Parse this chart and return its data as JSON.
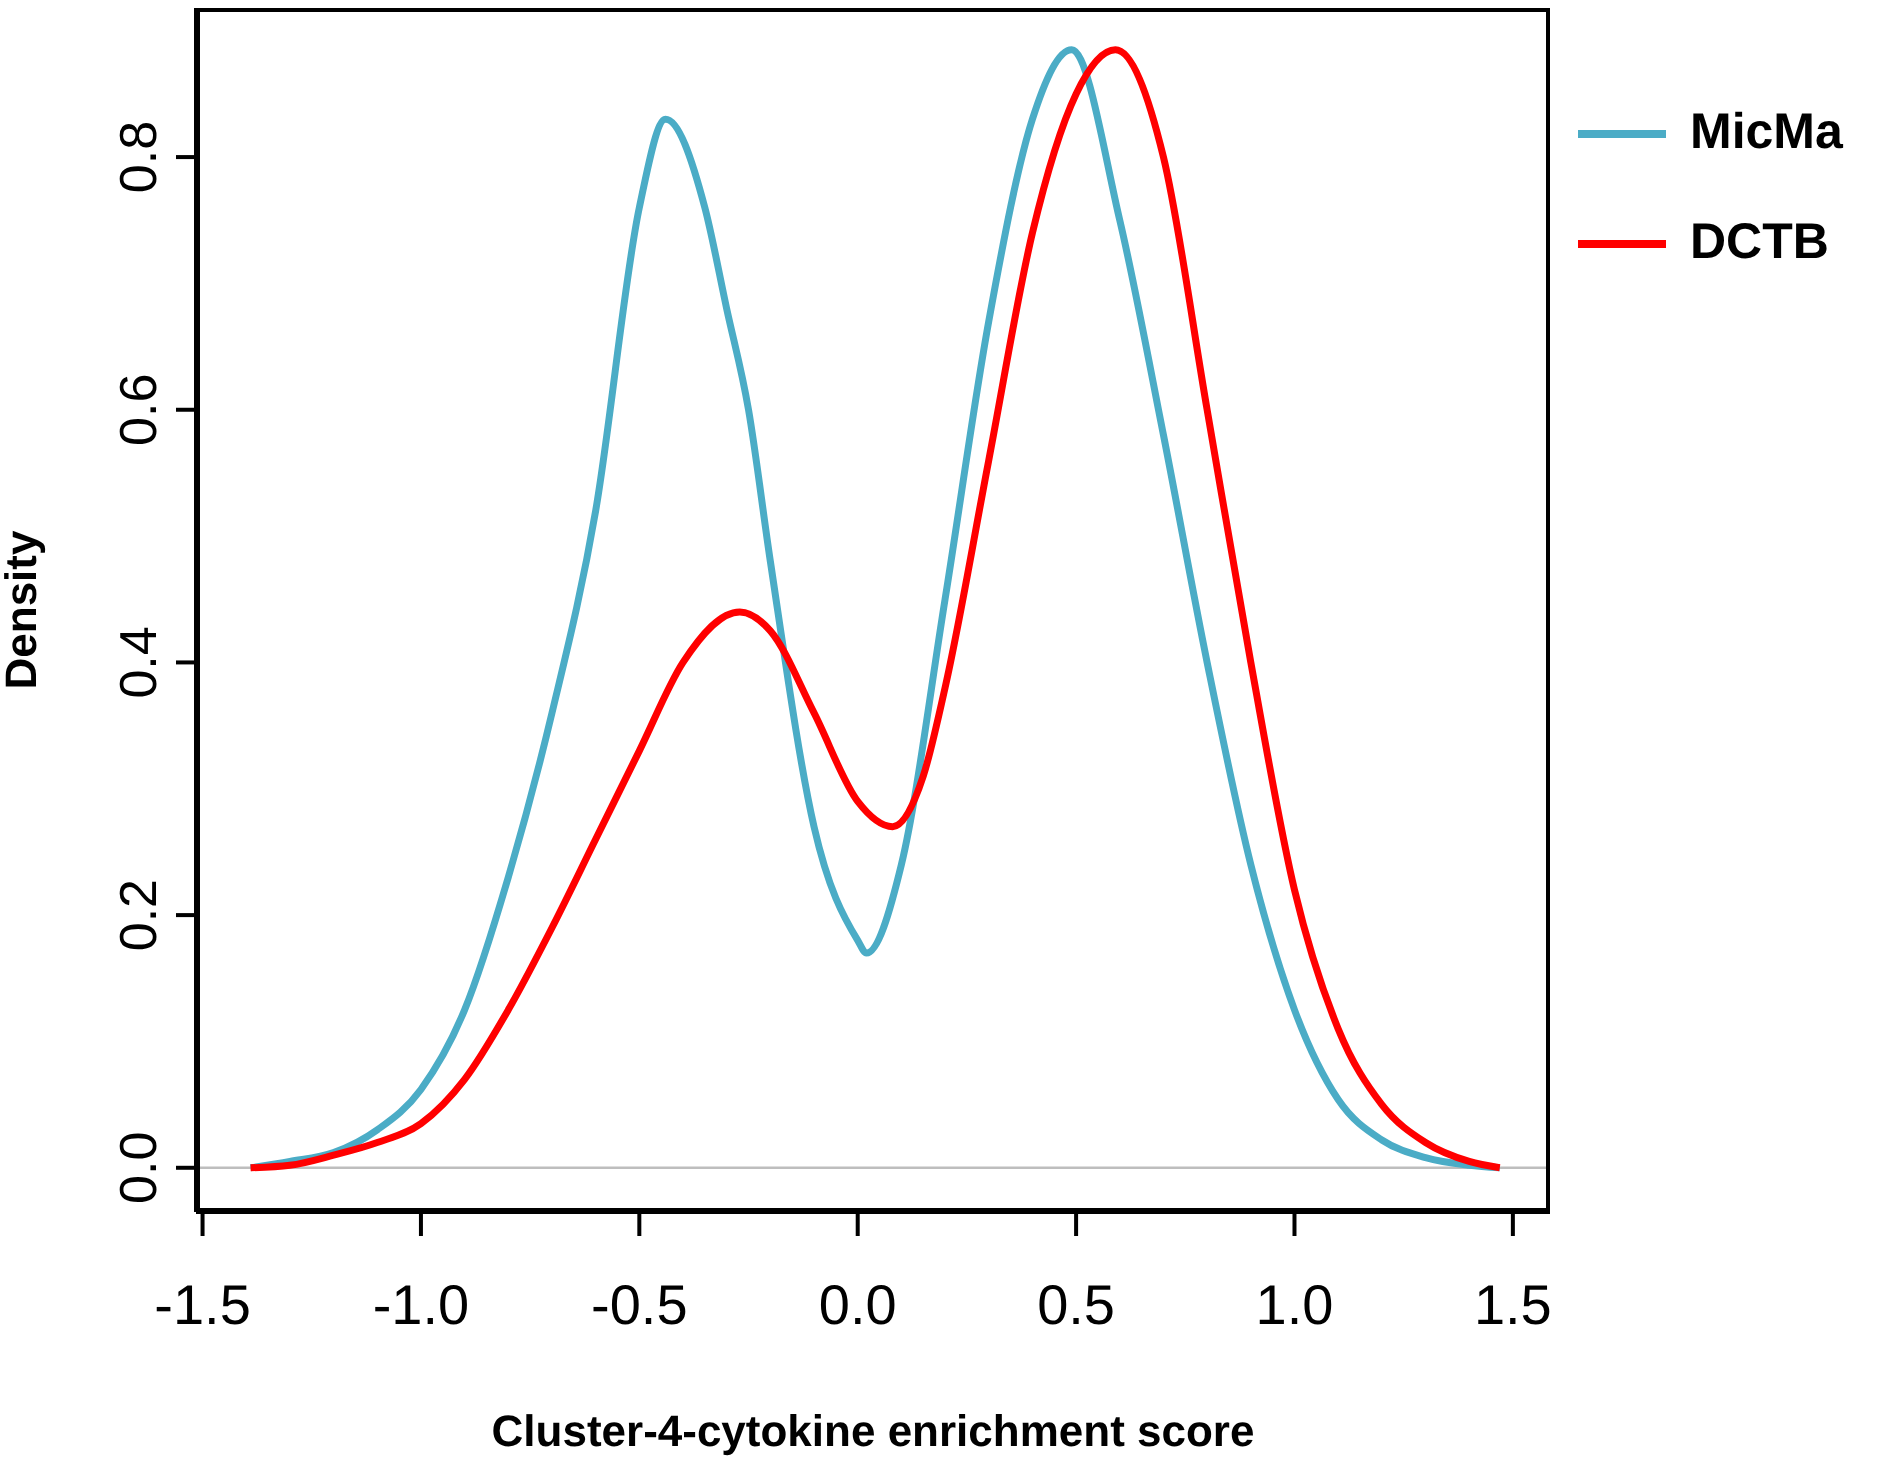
{
  "chart_data": {
    "type": "line",
    "xlabel": "Cluster-4-cytokine enrichment score",
    "ylabel": "Density",
    "xlim": [
      -1.515,
      1.585
    ],
    "ylim": [
      -0.035,
      0.918
    ],
    "xticks": [
      -1.5,
      {
        "value": -1,
        "label": "-1.0"
      },
      -0.5,
      {
        "value": 0,
        "label": "0.0"
      },
      0.5,
      {
        "value": 1,
        "label": "1.0"
      },
      1.5
    ],
    "yticks": [
      {
        "value": 0,
        "label": "0.0"
      },
      0.2,
      0.4,
      0.6,
      0.8
    ],
    "legend": "right",
    "marker": "none",
    "line_style": "solid",
    "ref_lines": [
      {
        "axis": "y",
        "value": 0,
        "color": "#bebebe"
      }
    ],
    "series": [
      {
        "name": "MicMa",
        "color": "#4bacc6",
        "x": [
          -1.39,
          -1.3,
          -1.2,
          -1.1,
          -1.0,
          -0.9,
          -0.8,
          -0.7,
          -0.6,
          -0.5,
          -0.44,
          -0.35,
          -0.3,
          -0.25,
          -0.2,
          -0.1,
          0,
          0.02,
          0.1,
          0.2,
          0.3,
          0.4,
          0.49,
          0.6,
          0.7,
          0.8,
          0.9,
          1.0,
          1.1,
          1.2,
          1.3,
          1.4,
          1.47
        ],
        "values": [
          0,
          0.005,
          0.012,
          0.03,
          0.062,
          0.125,
          0.23,
          0.36,
          0.52,
          0.76,
          0.83,
          0.76,
          0.68,
          0.6,
          0.48,
          0.27,
          0.18,
          0.17,
          0.24,
          0.45,
          0.67,
          0.83,
          0.885,
          0.75,
          0.58,
          0.4,
          0.24,
          0.125,
          0.054,
          0.022,
          0.008,
          0.002,
          0
        ]
      },
      {
        "name": "DCTB",
        "color": "#ff0000",
        "x": [
          -1.39,
          -1.3,
          -1.2,
          -1.1,
          -1.0,
          -0.9,
          -0.8,
          -0.7,
          -0.6,
          -0.5,
          -0.4,
          -0.27,
          -0.2,
          -0.1,
          0,
          0.08,
          0.15,
          0.2,
          0.3,
          0.4,
          0.5,
          0.59,
          0.7,
          0.8,
          0.9,
          1.0,
          1.1,
          1.2,
          1.3,
          1.4,
          1.47
        ],
        "values": [
          0,
          0.002,
          0.01,
          0.02,
          0.035,
          0.07,
          0.125,
          0.19,
          0.26,
          0.33,
          0.4,
          0.44,
          0.425,
          0.36,
          0.29,
          0.27,
          0.31,
          0.38,
          0.56,
          0.74,
          0.85,
          0.885,
          0.8,
          0.6,
          0.4,
          0.22,
          0.11,
          0.05,
          0.02,
          0.005,
          0
        ]
      }
    ]
  }
}
